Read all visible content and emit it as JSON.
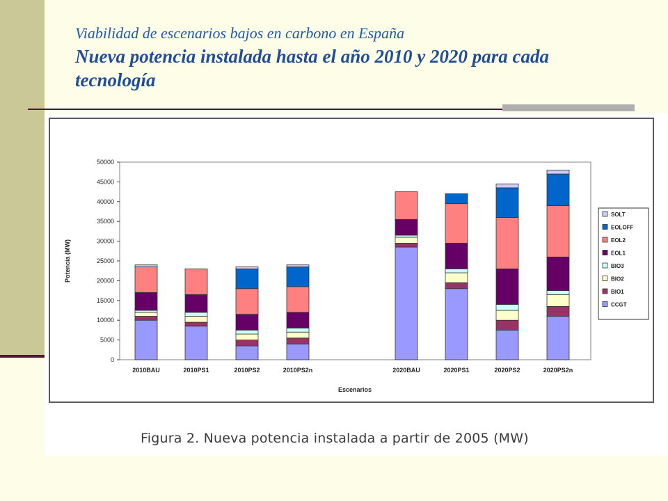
{
  "slide": {
    "subtitle": "Viabilidad de escenarios bajos en carbono en España",
    "title": "Nueva potencia instalada hasta el año 2010 y 2020 para cada tecnología",
    "caption": "Figura 2. Nueva potencia instalada a partir de 2005 (MW)"
  },
  "chart_data": {
    "type": "bar",
    "stacked": true,
    "title": "",
    "xlabel": "Escenarios",
    "ylabel": "Potencia (MW)",
    "ylim": [
      0,
      50000
    ],
    "yticks": [
      0,
      5000,
      10000,
      15000,
      20000,
      25000,
      30000,
      35000,
      40000,
      45000,
      50000
    ],
    "grid": false,
    "legend_position": "right",
    "categories": [
      "2010BAU",
      "2010PS1",
      "2010PS2",
      "2010PS2n",
      "2020BAU",
      "2020PS1",
      "2020PS2",
      "2020PS2n"
    ],
    "series": [
      {
        "name": "CCGT",
        "color": "#9999ff",
        "values": [
          10000,
          8500,
          3500,
          4000,
          28500,
          18000,
          7500,
          11000
        ]
      },
      {
        "name": "BIO1",
        "color": "#993366",
        "values": [
          1000,
          1000,
          1500,
          1500,
          1000,
          1500,
          2500,
          2500
        ]
      },
      {
        "name": "BIO2",
        "color": "#ffffcc",
        "values": [
          1000,
          1500,
          1500,
          1500,
          1500,
          2500,
          2500,
          3000
        ]
      },
      {
        "name": "BIO3",
        "color": "#ccffff",
        "values": [
          500,
          1000,
          1000,
          1000,
          500,
          1000,
          1500,
          1000
        ]
      },
      {
        "name": "EOL1",
        "color": "#660066",
        "values": [
          4500,
          4500,
          4000,
          4000,
          4000,
          6500,
          9000,
          8500
        ]
      },
      {
        "name": "EOL2",
        "color": "#ff8080",
        "values": [
          6500,
          6500,
          6500,
          6500,
          7000,
          10000,
          13000,
          13000
        ]
      },
      {
        "name": "EOLOFF",
        "color": "#0066cc",
        "values": [
          0,
          0,
          5000,
          5000,
          0,
          2500,
          7500,
          8000
        ]
      },
      {
        "name": "SOLT",
        "color": "#ccccff",
        "values": [
          500,
          0,
          500,
          500,
          0,
          0,
          1000,
          1000
        ]
      }
    ]
  }
}
